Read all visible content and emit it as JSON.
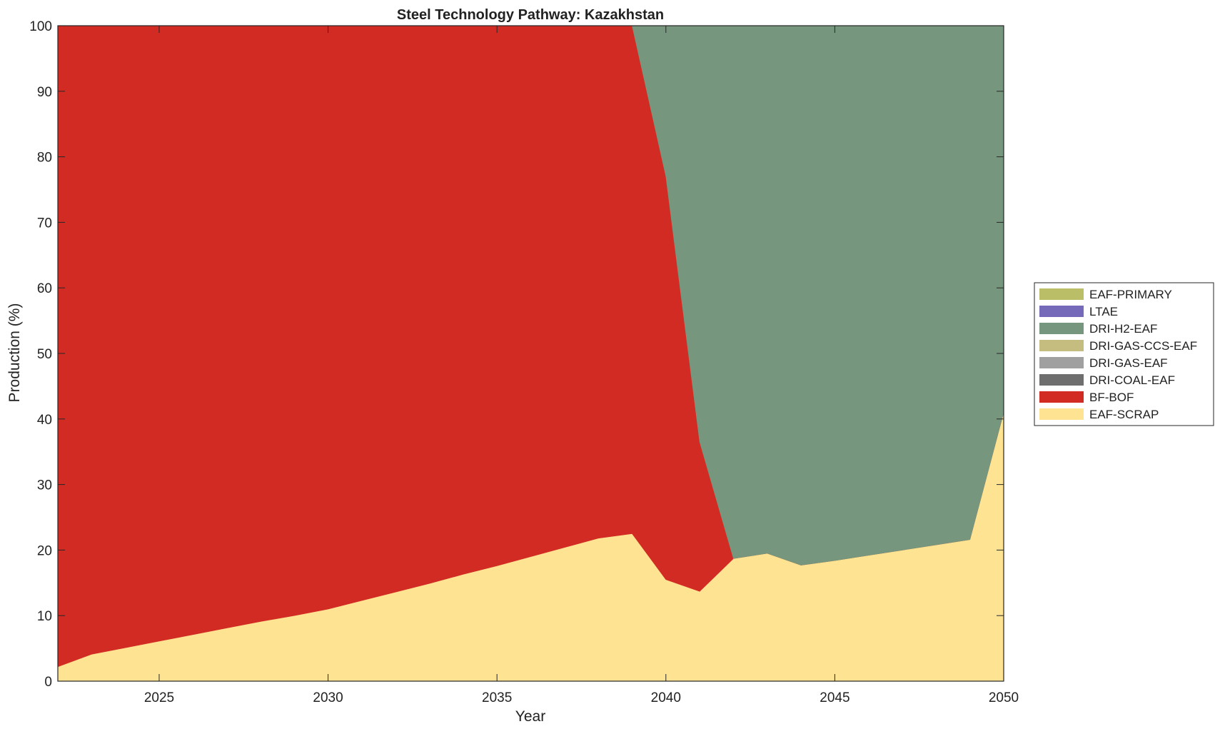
{
  "chart_data": {
    "type": "area",
    "stacked": true,
    "title": "Steel Technology Pathway: Kazakhstan",
    "xlabel": "Year",
    "ylabel": "Production (%)",
    "xlim": [
      2022,
      2050
    ],
    "ylim": [
      0,
      100
    ],
    "xticks": [
      2025,
      2030,
      2035,
      2040,
      2045,
      2050
    ],
    "yticks": [
      0,
      10,
      20,
      30,
      40,
      50,
      60,
      70,
      80,
      90,
      100
    ],
    "grid": false,
    "legend_position": "right",
    "x": [
      2022,
      2023,
      2024,
      2025,
      2026,
      2027,
      2028,
      2029,
      2030,
      2031,
      2032,
      2033,
      2034,
      2035,
      2036,
      2037,
      2038,
      2039,
      2040,
      2041,
      2042,
      2043,
      2044,
      2045,
      2046,
      2047,
      2048,
      2049,
      2050
    ],
    "series": [
      {
        "name": "EAF-SCRAP",
        "color": "#FDE392",
        "values": [
          2.2,
          4.1,
          5.1,
          6.1,
          7.1,
          8.1,
          9.1,
          10.0,
          11.0,
          12.3,
          13.6,
          14.9,
          16.3,
          17.6,
          19.0,
          20.4,
          21.8,
          22.5,
          15.5,
          13.7,
          18.7,
          19.5,
          17.7,
          18.4,
          19.2,
          20.0,
          20.8,
          21.6,
          41.0
        ]
      },
      {
        "name": "BF-BOF",
        "color": "#D22B24",
        "values": [
          97.8,
          95.9,
          94.9,
          93.9,
          92.9,
          91.9,
          90.9,
          90.0,
          89.0,
          87.7,
          86.4,
          85.1,
          83.7,
          82.4,
          81.0,
          79.6,
          78.2,
          77.5,
          61.5,
          22.8,
          0,
          0,
          0,
          0,
          0,
          0,
          0,
          0,
          0
        ]
      },
      {
        "name": "DRI-COAL-EAF",
        "color": "#6E6E6E",
        "values": [
          0,
          0,
          0,
          0,
          0,
          0,
          0,
          0,
          0,
          0,
          0,
          0,
          0,
          0,
          0,
          0,
          0,
          0,
          0,
          0,
          0,
          0,
          0,
          0,
          0,
          0,
          0,
          0,
          0
        ]
      },
      {
        "name": "DRI-GAS-EAF",
        "color": "#A0A0A0",
        "values": [
          0,
          0,
          0,
          0,
          0,
          0,
          0,
          0,
          0,
          0,
          0,
          0,
          0,
          0,
          0,
          0,
          0,
          0,
          0,
          0,
          0,
          0,
          0,
          0,
          0,
          0,
          0,
          0,
          0
        ]
      },
      {
        "name": "DRI-GAS-CCS-EAF",
        "color": "#C5BC7F",
        "values": [
          0,
          0,
          0,
          0,
          0,
          0,
          0,
          0,
          0,
          0,
          0,
          0,
          0,
          0,
          0,
          0,
          0,
          0,
          0,
          0,
          0,
          0,
          0,
          0,
          0,
          0,
          0,
          0,
          0
        ]
      },
      {
        "name": "DRI-H2-EAF",
        "color": "#76977D",
        "values": [
          0,
          0,
          0,
          0,
          0,
          0,
          0,
          0,
          0,
          0,
          0,
          0,
          0,
          0,
          0,
          0,
          0,
          0,
          23.0,
          63.5,
          81.3,
          80.5,
          82.3,
          81.6,
          80.8,
          80.0,
          79.2,
          78.4,
          59.0
        ]
      },
      {
        "name": "LTAE",
        "color": "#7569B9",
        "values": [
          0,
          0,
          0,
          0,
          0,
          0,
          0,
          0,
          0,
          0,
          0,
          0,
          0,
          0,
          0,
          0,
          0,
          0,
          0,
          0,
          0,
          0,
          0,
          0,
          0,
          0,
          0,
          0,
          0
        ]
      },
      {
        "name": "EAF-PRIMARY",
        "color": "#BABF67",
        "values": [
          0,
          0,
          0,
          0,
          0,
          0,
          0,
          0,
          0,
          0,
          0,
          0,
          0,
          0,
          0,
          0,
          0,
          0,
          0,
          0,
          0,
          0,
          0,
          0,
          0,
          0,
          0,
          0,
          0
        ]
      }
    ],
    "legend_order": [
      "EAF-PRIMARY",
      "LTAE",
      "DRI-H2-EAF",
      "DRI-GAS-CCS-EAF",
      "DRI-GAS-EAF",
      "DRI-COAL-EAF",
      "BF-BOF",
      "EAF-SCRAP"
    ]
  }
}
